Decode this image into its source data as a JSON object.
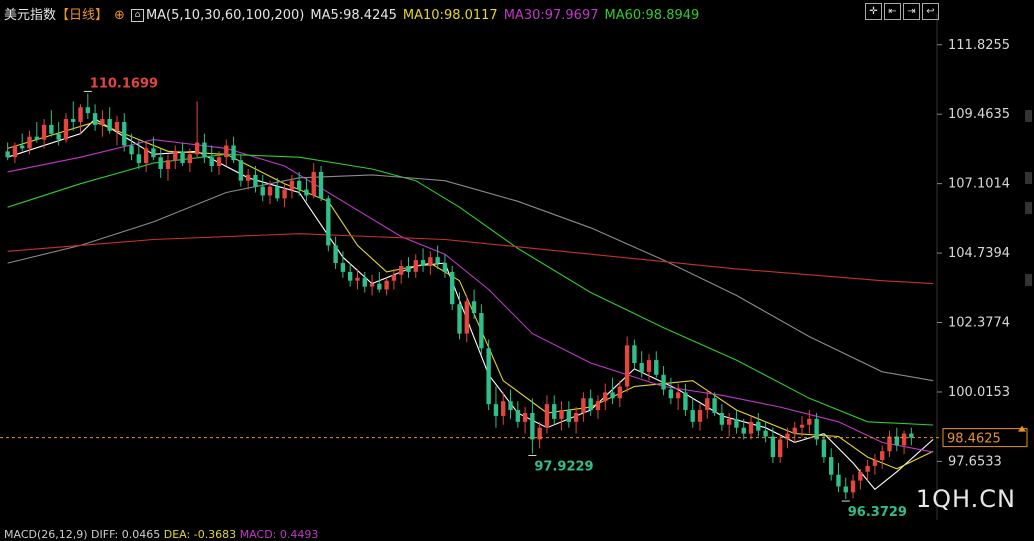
{
  "header": {
    "symbol": "美元指数",
    "period": "【日线】",
    "period_icon": "plus-circle-icon",
    "ma_label": "MA(5,10,30,60,100,200)",
    "ma5": "MA5:98.4245",
    "ma10": "MA10:98.0117",
    "ma30": "MA30:97.9697",
    "ma60": "MA60:98.8949"
  },
  "toolbar_icons": [
    "crosshair-icon",
    "align-left-icon",
    "align-right-icon",
    "back-icon"
  ],
  "watermark": "1QH.CN",
  "macd_line": {
    "label": "MACD(26,12,9)",
    "diff": "DIFF: 0.0465",
    "dea": "DEA: -0.3683",
    "macd": "MACD: 0.4493"
  },
  "colors": {
    "up": "#e2463f",
    "down": "#2fbf8a",
    "ma5": "#ffffff",
    "ma10": "#e5d62b",
    "ma30": "#c038c8",
    "ma60": "#2ecc2e",
    "ma100": "#8a8a8a",
    "ma200": "#c83030",
    "price_line": "#e8922a"
  },
  "chart_data": {
    "type": "candlestick",
    "y_ticks": [
      "111.8255",
      "109.4635",
      "107.1014",
      "104.7394",
      "102.3774",
      "100.0153",
      "97.6533"
    ],
    "ylim": [
      96.0,
      112.6
    ],
    "current_price": "98.4625",
    "annotations": {
      "high": "110.1699",
      "low1": "97.9229",
      "low2": "96.3729"
    },
    "candles": [
      [
        108.2,
        108.5,
        107.9,
        108.0
      ],
      [
        108.0,
        108.5,
        107.8,
        108.4
      ],
      [
        108.4,
        108.8,
        108.2,
        108.3
      ],
      [
        108.3,
        108.9,
        108.1,
        108.7
      ],
      [
        108.7,
        109.2,
        108.5,
        108.6
      ],
      [
        108.6,
        109.3,
        108.3,
        109.1
      ],
      [
        109.1,
        109.6,
        108.7,
        108.8
      ],
      [
        108.8,
        109.2,
        108.4,
        108.6
      ],
      [
        108.6,
        109.5,
        108.5,
        109.3
      ],
      [
        109.3,
        109.9,
        108.9,
        109.2
      ],
      [
        109.2,
        109.8,
        108.8,
        109.7
      ],
      [
        109.7,
        110.17,
        109.3,
        109.5
      ],
      [
        109.5,
        109.8,
        108.9,
        109.1
      ],
      [
        109.1,
        109.6,
        108.7,
        109.3
      ],
      [
        109.3,
        109.7,
        108.8,
        108.9
      ],
      [
        108.9,
        109.4,
        108.4,
        109.2
      ],
      [
        109.2,
        109.5,
        108.2,
        108.4
      ],
      [
        108.4,
        108.8,
        107.9,
        108.1
      ],
      [
        108.1,
        108.6,
        107.6,
        107.8
      ],
      [
        107.8,
        108.5,
        107.5,
        108.3
      ],
      [
        108.3,
        108.7,
        107.9,
        108.0
      ],
      [
        108.0,
        108.3,
        107.3,
        107.6
      ],
      [
        107.6,
        108.1,
        107.2,
        107.9
      ],
      [
        107.9,
        108.4,
        107.6,
        108.2
      ],
      [
        108.2,
        108.5,
        107.7,
        107.8
      ],
      [
        107.8,
        108.3,
        107.5,
        108.1
      ],
      [
        108.1,
        109.9,
        108.0,
        108.5
      ],
      [
        108.5,
        108.8,
        107.8,
        108.0
      ],
      [
        108.0,
        108.4,
        107.5,
        107.7
      ],
      [
        107.7,
        108.2,
        107.4,
        108.0
      ],
      [
        108.0,
        108.6,
        107.7,
        108.4
      ],
      [
        108.4,
        108.7,
        107.8,
        107.9
      ],
      [
        107.9,
        108.1,
        107.0,
        107.2
      ],
      [
        107.2,
        107.6,
        106.9,
        107.4
      ],
      [
        107.4,
        107.7,
        106.8,
        107.0
      ],
      [
        107.0,
        107.4,
        106.5,
        106.7
      ],
      [
        106.7,
        107.2,
        106.4,
        107.0
      ],
      [
        107.0,
        107.3,
        106.5,
        106.6
      ],
      [
        106.6,
        107.1,
        106.3,
        106.9
      ],
      [
        106.9,
        107.4,
        106.6,
        107.2
      ],
      [
        107.2,
        107.5,
        106.7,
        106.9
      ],
      [
        106.9,
        107.3,
        106.5,
        106.7
      ],
      [
        106.7,
        107.8,
        106.6,
        107.5
      ],
      [
        107.5,
        107.7,
        106.5,
        106.6
      ],
      [
        106.6,
        106.7,
        104.8,
        105.0
      ],
      [
        105.0,
        105.3,
        104.2,
        104.4
      ],
      [
        104.4,
        104.8,
        103.9,
        104.1
      ],
      [
        104.1,
        104.4,
        103.6,
        103.8
      ],
      [
        103.8,
        104.2,
        103.5,
        103.9
      ],
      [
        103.9,
        104.1,
        103.4,
        103.6
      ],
      [
        103.6,
        104.0,
        103.3,
        103.7
      ],
      [
        103.7,
        104.1,
        103.4,
        103.5
      ],
      [
        103.5,
        103.9,
        103.3,
        103.8
      ],
      [
        103.8,
        104.2,
        103.5,
        104.0
      ],
      [
        104.0,
        104.5,
        103.7,
        104.3
      ],
      [
        104.3,
        104.6,
        103.9,
        104.1
      ],
      [
        104.1,
        104.7,
        103.9,
        104.5
      ],
      [
        104.5,
        104.9,
        104.1,
        104.3
      ],
      [
        104.3,
        104.8,
        104.0,
        104.6
      ],
      [
        104.6,
        105.0,
        104.2,
        104.4
      ],
      [
        104.4,
        104.7,
        103.9,
        104.1
      ],
      [
        104.1,
        104.3,
        102.8,
        103.0
      ],
      [
        103.0,
        103.4,
        101.8,
        102.0
      ],
      [
        102.0,
        103.3,
        101.7,
        103.1
      ],
      [
        103.1,
        103.5,
        102.5,
        102.7
      ],
      [
        102.7,
        103.0,
        101.3,
        101.5
      ],
      [
        101.5,
        101.8,
        99.4,
        99.6
      ],
      [
        99.6,
        100.2,
        98.8,
        99.2
      ],
      [
        99.2,
        100.0,
        98.9,
        99.7
      ],
      [
        99.7,
        100.1,
        99.1,
        99.4
      ],
      [
        99.4,
        99.7,
        98.8,
        99.0
      ],
      [
        99.0,
        99.5,
        98.6,
        99.3
      ],
      [
        99.3,
        99.8,
        97.92,
        98.4
      ],
      [
        98.4,
        99.0,
        98.1,
        98.8
      ],
      [
        98.8,
        99.9,
        98.6,
        99.6
      ],
      [
        99.6,
        99.9,
        98.9,
        99.1
      ],
      [
        99.1,
        99.7,
        98.7,
        99.4
      ],
      [
        99.4,
        99.7,
        98.8,
        99.0
      ],
      [
        99.0,
        99.5,
        98.6,
        99.3
      ],
      [
        99.3,
        100.0,
        99.0,
        99.8
      ],
      [
        99.8,
        100.1,
        99.2,
        99.4
      ],
      [
        99.4,
        99.9,
        99.1,
        99.7
      ],
      [
        99.7,
        100.3,
        99.4,
        100.0
      ],
      [
        100.0,
        100.5,
        99.6,
        99.8
      ],
      [
        99.8,
        100.4,
        99.5,
        100.2
      ],
      [
        100.2,
        101.9,
        100.0,
        101.6
      ],
      [
        101.6,
        101.8,
        100.8,
        101.0
      ],
      [
        101.0,
        101.4,
        100.5,
        100.7
      ],
      [
        100.7,
        101.3,
        100.4,
        101.1
      ],
      [
        101.1,
        101.4,
        100.5,
        100.6
      ],
      [
        100.6,
        100.9,
        99.9,
        100.1
      ],
      [
        100.1,
        100.5,
        99.6,
        99.8
      ],
      [
        99.8,
        100.3,
        99.4,
        100.0
      ],
      [
        100.0,
        100.3,
        99.2,
        99.4
      ],
      [
        99.4,
        99.8,
        98.8,
        99.0
      ],
      [
        99.0,
        99.6,
        98.7,
        99.4
      ],
      [
        99.4,
        100.1,
        99.1,
        99.8
      ],
      [
        99.8,
        100.0,
        99.2,
        99.3
      ],
      [
        99.3,
        99.6,
        98.7,
        98.9
      ],
      [
        98.9,
        99.3,
        98.5,
        99.1
      ],
      [
        99.1,
        99.4,
        98.6,
        98.8
      ],
      [
        98.8,
        99.1,
        98.4,
        98.6
      ],
      [
        98.6,
        99.2,
        98.4,
        99.0
      ],
      [
        99.0,
        99.3,
        98.5,
        98.7
      ],
      [
        98.7,
        99.0,
        98.3,
        98.5
      ],
      [
        98.5,
        98.8,
        97.6,
        97.8
      ],
      [
        97.8,
        98.6,
        97.6,
        98.4
      ],
      [
        98.4,
        98.8,
        98.1,
        98.6
      ],
      [
        98.6,
        99.0,
        98.3,
        98.8
      ],
      [
        98.8,
        99.2,
        98.5,
        98.9
      ],
      [
        98.9,
        99.4,
        98.6,
        99.1
      ],
      [
        99.1,
        99.3,
        98.2,
        98.4
      ],
      [
        98.4,
        98.6,
        97.6,
        97.8
      ],
      [
        97.8,
        98.1,
        97.0,
        97.2
      ],
      [
        97.2,
        97.6,
        96.6,
        96.8
      ],
      [
        96.8,
        97.1,
        96.37,
        96.6
      ],
      [
        96.6,
        97.2,
        96.4,
        97.0
      ],
      [
        97.0,
        97.4,
        96.7,
        97.3
      ],
      [
        97.3,
        97.7,
        97.0,
        97.5
      ],
      [
        97.5,
        97.9,
        97.2,
        97.7
      ],
      [
        97.7,
        98.2,
        97.4,
        98.0
      ],
      [
        98.0,
        98.7,
        97.8,
        98.5
      ],
      [
        98.5,
        98.8,
        98.0,
        98.2
      ],
      [
        98.2,
        98.7,
        97.9,
        98.6
      ],
      [
        98.6,
        98.8,
        98.2,
        98.46
      ]
    ],
    "ma_lines": {
      "MA5": [
        [
          0,
          108.0
        ],
        [
          10,
          108.8
        ],
        [
          12,
          109.3
        ],
        [
          20,
          108.1
        ],
        [
          26,
          108.2
        ],
        [
          33,
          107.3
        ],
        [
          40,
          106.8
        ],
        [
          46,
          104.6
        ],
        [
          50,
          103.7
        ],
        [
          56,
          104.3
        ],
        [
          60,
          104.4
        ],
        [
          66,
          100.6
        ],
        [
          70,
          99.3
        ],
        [
          74,
          98.8
        ],
        [
          80,
          99.4
        ],
        [
          86,
          100.8
        ],
        [
          92,
          100.1
        ],
        [
          98,
          99.2
        ],
        [
          104,
          98.8
        ],
        [
          108,
          98.3
        ],
        [
          112,
          98.6
        ],
        [
          116,
          97.6
        ],
        [
          119,
          96.7
        ],
        [
          122,
          97.3
        ],
        [
          127,
          98.4
        ]
      ],
      "MA10": [
        [
          0,
          108.3
        ],
        [
          12,
          109.2
        ],
        [
          22,
          108.2
        ],
        [
          30,
          108.1
        ],
        [
          38,
          107.1
        ],
        [
          44,
          106.5
        ],
        [
          48,
          105.0
        ],
        [
          52,
          104.1
        ],
        [
          58,
          104.4
        ],
        [
          62,
          103.8
        ],
        [
          68,
          100.4
        ],
        [
          74,
          99.3
        ],
        [
          80,
          99.5
        ],
        [
          86,
          100.2
        ],
        [
          94,
          100.4
        ],
        [
          100,
          99.4
        ],
        [
          108,
          98.6
        ],
        [
          114,
          98.5
        ],
        [
          118,
          97.8
        ],
        [
          122,
          97.4
        ],
        [
          127,
          98.0
        ]
      ],
      "MA30": [
        [
          0,
          107.5
        ],
        [
          10,
          108.0
        ],
        [
          20,
          108.6
        ],
        [
          30,
          108.3
        ],
        [
          38,
          107.7
        ],
        [
          46,
          106.5
        ],
        [
          54,
          105.3
        ],
        [
          60,
          104.7
        ],
        [
          66,
          103.5
        ],
        [
          72,
          102.0
        ],
        [
          80,
          101.0
        ],
        [
          90,
          100.2
        ],
        [
          98,
          99.9
        ],
        [
          106,
          99.5
        ],
        [
          114,
          99.0
        ],
        [
          120,
          98.3
        ],
        [
          127,
          97.97
        ]
      ],
      "MA60": [
        [
          0,
          106.3
        ],
        [
          10,
          107.1
        ],
        [
          20,
          107.8
        ],
        [
          30,
          108.1
        ],
        [
          40,
          108.0
        ],
        [
          50,
          107.6
        ],
        [
          56,
          107.2
        ],
        [
          62,
          106.3
        ],
        [
          70,
          104.9
        ],
        [
          80,
          103.4
        ],
        [
          90,
          102.2
        ],
        [
          100,
          101.1
        ],
        [
          110,
          99.8
        ],
        [
          118,
          99.0
        ],
        [
          127,
          98.89
        ]
      ],
      "MA100": [
        [
          0,
          104.4
        ],
        [
          10,
          105.0
        ],
        [
          20,
          105.8
        ],
        [
          30,
          106.8
        ],
        [
          40,
          107.3
        ],
        [
          50,
          107.4
        ],
        [
          60,
          107.2
        ],
        [
          70,
          106.5
        ],
        [
          80,
          105.6
        ],
        [
          90,
          104.5
        ],
        [
          100,
          103.3
        ],
        [
          110,
          101.9
        ],
        [
          120,
          100.7
        ],
        [
          127,
          100.4
        ]
      ],
      "MA200": [
        [
          0,
          104.8
        ],
        [
          20,
          105.2
        ],
        [
          40,
          105.4
        ],
        [
          60,
          105.2
        ],
        [
          80,
          104.7
        ],
        [
          100,
          104.2
        ],
        [
          120,
          103.8
        ],
        [
          127,
          103.7
        ]
      ]
    }
  }
}
